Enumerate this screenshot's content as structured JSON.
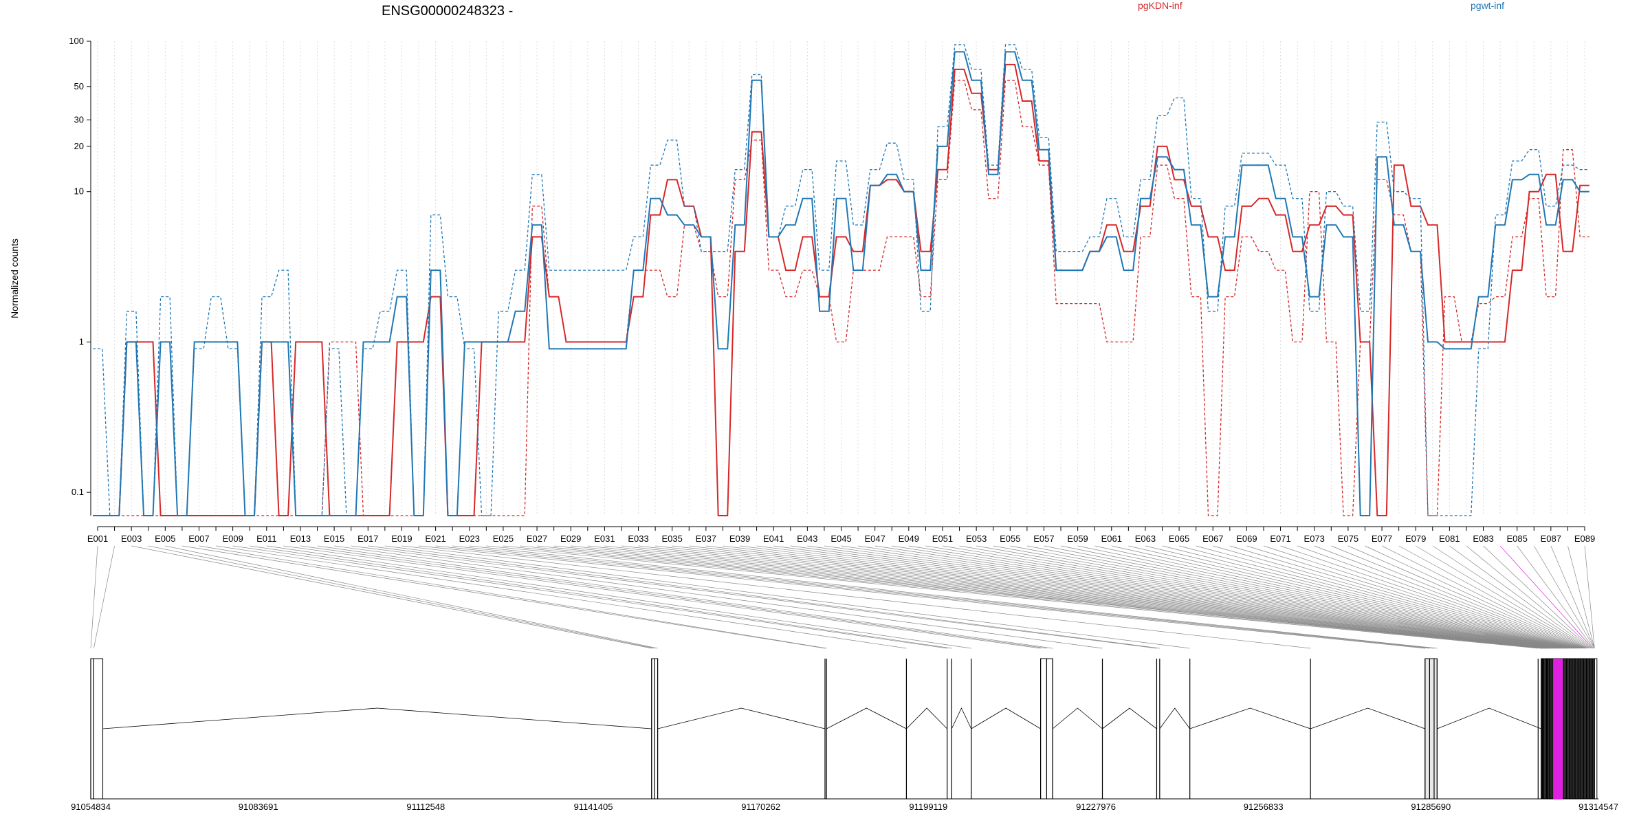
{
  "chart_data": {
    "type": "line",
    "title": "ENSG00000248323 -",
    "ylabel": "Normalized counts",
    "yscale": "log",
    "ylim": [
      0.07,
      100
    ],
    "yticks": [
      0.1,
      1,
      10,
      20,
      30,
      50,
      100
    ],
    "ytick_labels": [
      "0.1",
      "1",
      "10",
      "20",
      "30",
      "50",
      "100"
    ],
    "grid": "vertical dotted",
    "legend": [
      {
        "name": "pgKDN-inf",
        "color": "#d62728",
        "position": "top-center"
      },
      {
        "name": "pgwt-inf",
        "color": "#1f77b4",
        "position": "top-right"
      }
    ],
    "x": [
      "E001",
      "E002",
      "E003",
      "E004",
      "E005",
      "E006",
      "E007",
      "E008",
      "E009",
      "E010",
      "E011",
      "E012",
      "E013",
      "E014",
      "E015",
      "E016",
      "E017",
      "E018",
      "E019",
      "E020",
      "E021",
      "E022",
      "E023",
      "E024",
      "E025",
      "E026",
      "E027",
      "E028",
      "E029",
      "E030",
      "E031",
      "E032",
      "E033",
      "E034",
      "E035",
      "E036",
      "E037",
      "E038",
      "E039",
      "E040",
      "E041",
      "E042",
      "E043",
      "E044",
      "E045",
      "E046",
      "E047",
      "E048",
      "E049",
      "E050",
      "E051",
      "E052",
      "E053",
      "E054",
      "E055",
      "E056",
      "E057",
      "E058",
      "E059",
      "E060",
      "E061",
      "E062",
      "E063",
      "E064",
      "E065",
      "E066",
      "E067",
      "E068",
      "E069",
      "E070",
      "E071",
      "E072",
      "E073",
      "E074",
      "E075",
      "E076",
      "E077",
      "E078",
      "E079",
      "E080",
      "E081",
      "E082",
      "E083",
      "E084",
      "E085",
      "E086",
      "E087",
      "E088",
      "E089"
    ],
    "x_labels_shown": [
      "E001",
      "E003",
      "E005",
      "E007",
      "E009",
      "E011",
      "E013",
      "E015",
      "E017",
      "E019",
      "E021",
      "E023",
      "E025",
      "E027",
      "E029",
      "E031",
      "E033",
      "E035",
      "E037",
      "E039",
      "E041",
      "E043",
      "E045",
      "E047",
      "E049",
      "E051",
      "E053",
      "E055",
      "E057",
      "E059",
      "E061",
      "E063",
      "E065",
      "E067",
      "E069",
      "E071",
      "E073",
      "E075",
      "E077",
      "E079",
      "E081",
      "E083",
      "E085",
      "E087",
      "E089"
    ],
    "series": [
      {
        "name": "pgKDN-inf",
        "color": "#d62728",
        "dashed": false,
        "values": [
          0.07,
          0.07,
          1,
          1,
          0.07,
          0.07,
          0.07,
          0.07,
          0.07,
          0.07,
          1,
          0.07,
          1,
          1,
          0.07,
          0.07,
          0.07,
          0.07,
          1,
          1,
          2,
          0.07,
          0.07,
          1,
          1,
          1,
          5,
          2,
          1,
          1,
          1,
          1,
          2,
          7,
          12,
          8,
          5,
          0.07,
          4,
          25,
          5,
          3,
          5,
          2,
          5,
          4,
          11,
          12,
          10,
          4,
          14,
          65,
          45,
          14,
          70,
          40,
          16,
          3,
          3,
          4,
          6,
          4,
          8,
          20,
          12,
          8,
          5,
          3,
          8,
          9,
          7,
          4,
          6,
          8,
          7,
          1,
          0.07,
          15,
          8,
          6,
          1,
          1,
          1,
          1,
          3,
          10,
          13,
          4,
          11
        ]
      },
      {
        "name": "pgKDN-inf",
        "color": "#d62728",
        "dashed": true,
        "values": [
          0.07,
          0.07,
          0.07,
          0.07,
          0.07,
          0.07,
          0.07,
          0.07,
          0.07,
          0.07,
          0.07,
          0.07,
          0.07,
          0.07,
          1,
          1,
          0.07,
          0.07,
          0.07,
          0.07,
          3,
          0.07,
          0.07,
          0.07,
          0.07,
          0.07,
          8,
          2,
          1,
          1,
          1,
          1,
          3,
          3,
          2,
          6,
          4,
          2,
          12,
          22,
          3,
          2,
          3,
          2,
          1,
          3,
          3,
          5,
          5,
          2,
          12,
          55,
          35,
          9,
          55,
          27,
          15,
          1.8,
          1.8,
          1.8,
          1,
          1,
          5,
          15,
          9,
          2,
          0.07,
          2,
          5,
          4,
          3,
          1,
          10,
          1,
          0.07,
          1,
          12,
          7,
          4,
          0.07,
          2,
          1,
          1.8,
          2,
          5,
          9,
          2,
          19,
          5
        ]
      },
      {
        "name": "pgwt-inf",
        "color": "#1f77b4",
        "dashed": false,
        "values": [
          0.07,
          0.07,
          1,
          0.07,
          1,
          0.07,
          1,
          1,
          1,
          0.07,
          1,
          1,
          0.07,
          0.07,
          0.07,
          0.07,
          1,
          1,
          2,
          0.07,
          3,
          0.07,
          1,
          1,
          1,
          1.6,
          6,
          0.9,
          0.9,
          0.9,
          0.9,
          0.9,
          3,
          9,
          7,
          6,
          5,
          0.9,
          6,
          55,
          5,
          6,
          9,
          1.6,
          9,
          3,
          11,
          13,
          10,
          3,
          20,
          85,
          55,
          13,
          85,
          55,
          19,
          3,
          3,
          4,
          5,
          3,
          9,
          17,
          14,
          6,
          2,
          5,
          15,
          15,
          9,
          5,
          2,
          6,
          5,
          0.07,
          17,
          6,
          4,
          1,
          0.9,
          0.9,
          2,
          6,
          12,
          13,
          6,
          12,
          10
        ]
      },
      {
        "name": "pgwt-inf",
        "color": "#1f77b4",
        "dashed": true,
        "values": [
          0.9,
          0.07,
          1.6,
          0.07,
          2,
          0.07,
          0.9,
          2,
          0.9,
          0.07,
          2,
          3,
          0.07,
          0.07,
          0.9,
          0.07,
          0.9,
          1.6,
          3,
          0.07,
          7,
          2,
          0.9,
          0.07,
          1.6,
          3,
          13,
          3,
          3,
          3,
          3,
          3,
          5,
          15,
          22,
          8,
          4,
          4,
          14,
          60,
          5,
          8,
          14,
          3,
          16,
          6,
          14,
          21,
          12,
          1.6,
          27,
          95,
          65,
          15,
          95,
          65,
          23,
          4,
          4,
          5,
          9,
          5,
          12,
          32,
          42,
          9,
          1.6,
          8,
          18,
          18,
          15,
          9,
          1.6,
          10,
          8,
          1.6,
          29,
          10,
          9,
          0.07,
          0.07,
          0.07,
          0.9,
          7,
          16,
          19,
          8,
          15,
          14
        ]
      }
    ]
  },
  "gene_model": {
    "axis_labels": [
      "91054834",
      "91083691",
      "91112548",
      "91141405",
      "91170262",
      "91199119",
      "91227976",
      "91256833",
      "91285690",
      "91314547"
    ],
    "highlight_color": "#e020e0"
  }
}
